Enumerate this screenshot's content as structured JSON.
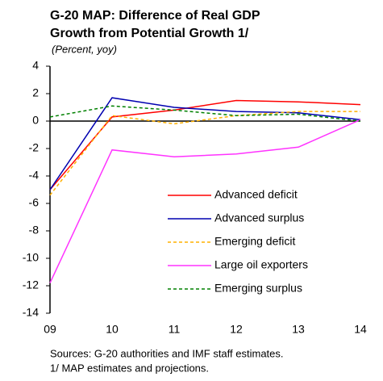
{
  "chart_data": {
    "type": "line",
    "title": [
      "G-20 MAP: Difference of Real GDP",
      "Growth from Potential Growth 1/"
    ],
    "subtitle": "(Percent, yoy)",
    "categories": [
      "09",
      "10",
      "11",
      "12",
      "13",
      "14"
    ],
    "series": [
      {
        "name": "Advanced deficit",
        "color": "#ff0000",
        "dashed": false,
        "values": [
          -5.0,
          0.3,
          0.8,
          1.5,
          1.4,
          1.2
        ]
      },
      {
        "name": "Advanced surplus",
        "color": "#0000b0",
        "dashed": false,
        "values": [
          -5.0,
          1.7,
          1.0,
          0.7,
          0.6,
          0.1
        ]
      },
      {
        "name": "Emerging deficit",
        "color": "#ffb000",
        "dashed": true,
        "values": [
          -5.4,
          0.4,
          -0.2,
          0.4,
          0.7,
          0.7
        ]
      },
      {
        "name": "Large oil exporters",
        "color": "#ff33ff",
        "dashed": false,
        "values": [
          -11.8,
          -2.1,
          -2.6,
          -2.4,
          -1.9,
          0.1
        ]
      },
      {
        "name": "Emerging surplus",
        "color": "#008000",
        "dashed": true,
        "values": [
          0.3,
          1.1,
          0.8,
          0.4,
          0.5,
          0.0
        ]
      }
    ],
    "ylim": [
      -14,
      4
    ],
    "yticks": [
      -14,
      -12,
      -10,
      -8,
      -6,
      -4,
      -2,
      0,
      2,
      4
    ],
    "legend": "lower-right",
    "notes": [
      "Sources:  G-20 authorities and IMF staff estimates.",
      "1/ MAP estimates and projections."
    ]
  }
}
